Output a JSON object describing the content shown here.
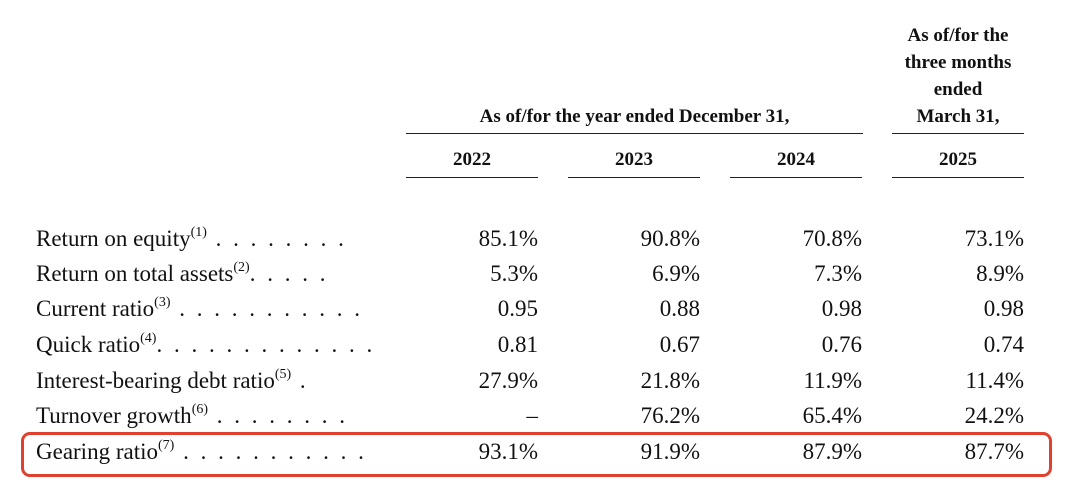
{
  "header": {
    "group_year": "As of/for the year ended December 31,",
    "group_quarter": [
      "As of/for the",
      "three months",
      "ended",
      "March 31,"
    ],
    "years": [
      "2022",
      "2023",
      "2024",
      "2025"
    ]
  },
  "rows": [
    {
      "label": "Return on equity",
      "note": "(1)",
      "leader": " . . . . . . . .",
      "values": [
        "85.1%",
        "90.8%",
        "70.8%",
        "73.1%"
      ]
    },
    {
      "label": "Return on total assets",
      "note": "(2)",
      "leader": ". . . . .",
      "values": [
        "5.3%",
        "6.9%",
        "7.3%",
        "8.9%"
      ]
    },
    {
      "label": "Current ratio",
      "note": "(3)",
      "leader": " . . . . . . . . . . .",
      "values": [
        "0.95",
        "0.88",
        "0.98",
        "0.98"
      ]
    },
    {
      "label": "Quick ratio",
      "note": "(4)",
      "leader": ". . . . . . . . . . . . .",
      "values": [
        "0.81",
        "0.67",
        "0.76",
        "0.74"
      ]
    },
    {
      "label": "Interest-bearing debt ratio",
      "note": "(5)",
      "leader": " .",
      "values": [
        "27.9%",
        "21.8%",
        "11.9%",
        "11.4%"
      ]
    },
    {
      "label": "Turnover growth",
      "note": "(6)",
      "leader": " . . . . . . . .",
      "values": [
        "–",
        "76.2%",
        "65.4%",
        "24.2%"
      ]
    },
    {
      "label": "Gearing ratio",
      "note": "(7)",
      "leader": " . . . . . . . . . . .",
      "values": [
        "93.1%",
        "91.9%",
        "87.9%",
        "87.7%"
      ]
    }
  ],
  "highlight": {
    "row_label": "Gearing ratio",
    "color": "#e0402e"
  }
}
